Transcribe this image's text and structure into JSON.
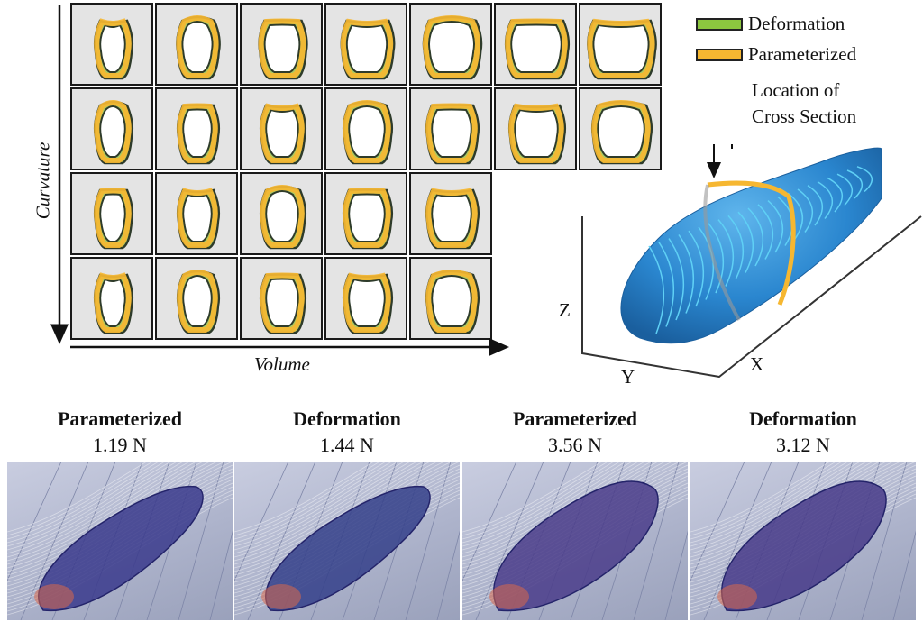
{
  "legend": {
    "items": [
      {
        "label": "Deformation",
        "color": "#8cc63f"
      },
      {
        "label": "Parameterized",
        "color": "#f6b731"
      }
    ]
  },
  "location_label": {
    "line1": "Location of",
    "line2": "Cross Section"
  },
  "axis_labels": {
    "vertical": "Curvature",
    "horizontal": "Volume"
  },
  "axes_3d": {
    "x": "X",
    "y": "Y",
    "z": "Z"
  },
  "grid": {
    "row_counts": [
      7,
      7,
      5,
      5
    ]
  },
  "simulations": [
    {
      "title": "Parameterized",
      "force": "1.19 N"
    },
    {
      "title": "Deformation",
      "force": "1.44 N"
    },
    {
      "title": "Parameterized",
      "force": "3.56 N"
    },
    {
      "title": "Deformation",
      "force": "3.12 N"
    }
  ],
  "colors": {
    "deformation": "#8cc63f",
    "parameterized": "#f6b731",
    "cell_bg": "#e4e4e4",
    "body_blue": "#2a8fd6",
    "contour_cyan": "#5fd0f5"
  }
}
